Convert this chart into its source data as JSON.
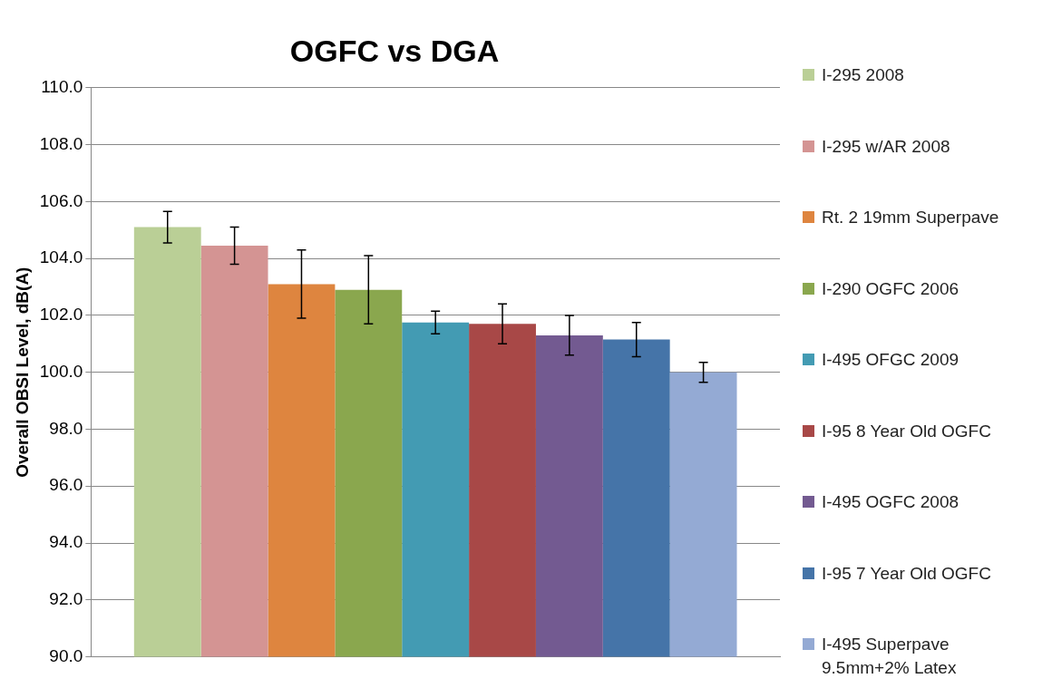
{
  "chart_data": {
    "type": "bar",
    "title": "OGFC vs DGA",
    "ylabel": "Overall OBSI Level, dB(A)",
    "categories": [
      null
    ],
    "series": [
      {
        "name": "I-295 2008",
        "color": "#bacf96",
        "values": [
          105.1
        ],
        "errors": [
          0.55
        ]
      },
      {
        "name": "I-295 w/AR 2008",
        "color": "#d49493",
        "values": [
          104.45
        ],
        "errors": [
          0.65
        ]
      },
      {
        "name": "Rt. 2 19mm Superpave",
        "color": "#de853f",
        "values": [
          103.1
        ],
        "errors": [
          1.2
        ]
      },
      {
        "name": "I-290 OGFC 2006",
        "color": "#8aa74e",
        "values": [
          102.9
        ],
        "errors": [
          1.2
        ]
      },
      {
        "name": "I-495 OFGC 2009",
        "color": "#439bb3",
        "values": [
          101.75
        ],
        "errors": [
          0.4
        ]
      },
      {
        "name": "I-95 8 Year Old OGFC",
        "color": "#a84847",
        "values": [
          101.7
        ],
        "errors": [
          0.7
        ]
      },
      {
        "name": "I-495 OGFC 2008",
        "color": "#735a91",
        "values": [
          101.3
        ],
        "errors": [
          0.7
        ]
      },
      {
        "name": "I-95 7 Year Old OGFC",
        "color": "#4574a8",
        "values": [
          101.15
        ],
        "errors": [
          0.6
        ]
      },
      {
        "name": "I-495 Superpave 9.5mm+2% Latex",
        "color": "#94aad4",
        "values": [
          100.0
        ],
        "errors": [
          0.35
        ]
      }
    ],
    "ylim": [
      90,
      110
    ],
    "yticks": [
      {
        "value": 90,
        "label": "90.0"
      },
      {
        "value": 92,
        "label": "92.0"
      },
      {
        "value": 94,
        "label": "94.0"
      },
      {
        "value": 96,
        "label": "96.0"
      },
      {
        "value": 98,
        "label": "98.0"
      },
      {
        "value": 100,
        "label": "100.0"
      },
      {
        "value": 102,
        "label": "102.0"
      },
      {
        "value": 104,
        "label": "104.0"
      },
      {
        "value": 106,
        "label": "106.0"
      },
      {
        "value": 108,
        "label": "108.0"
      },
      {
        "value": 110,
        "label": "110.0"
      }
    ],
    "grid": "y",
    "legend": "right"
  }
}
